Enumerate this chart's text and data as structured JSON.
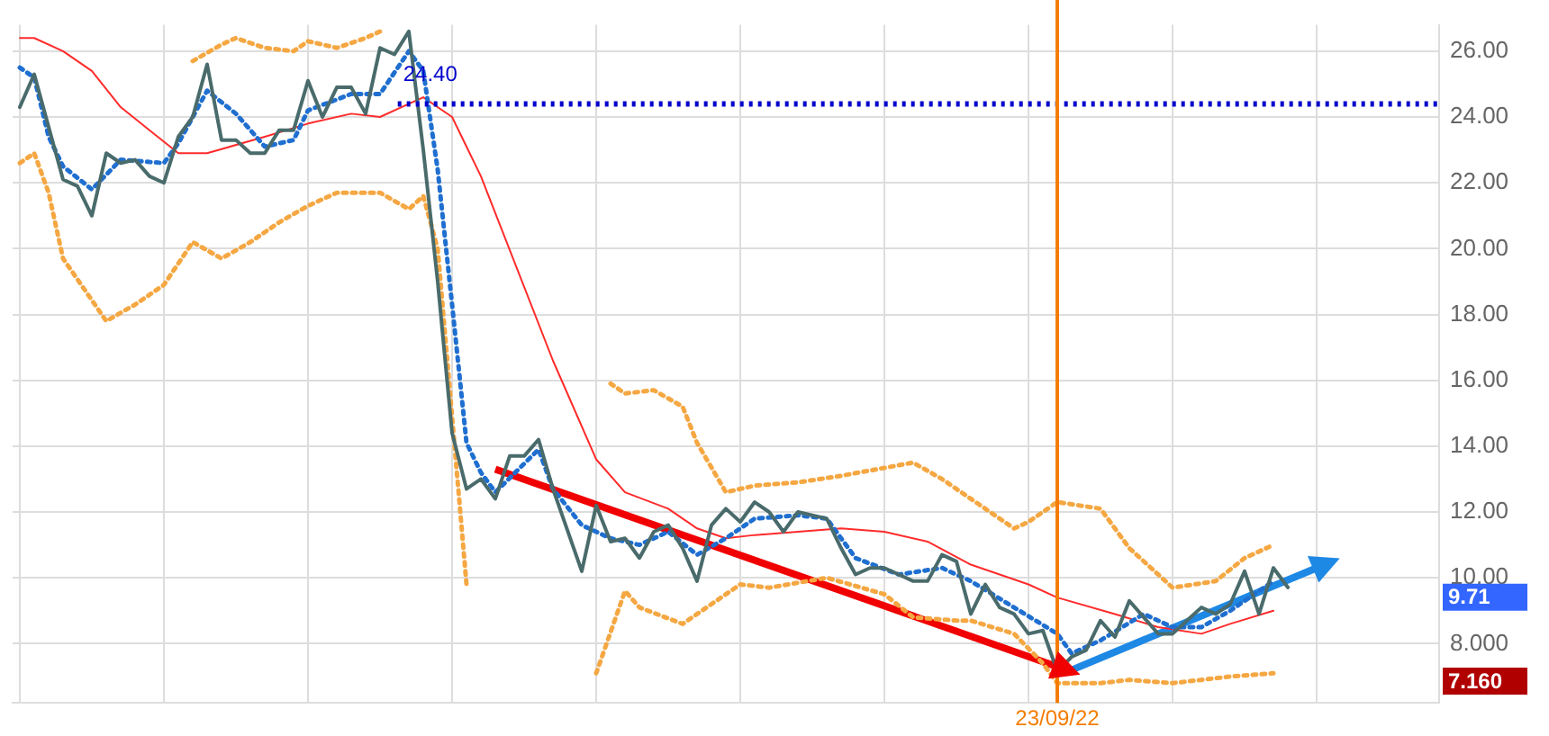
{
  "chart_data": {
    "type": "line",
    "categories": [
      null,
      null,
      null,
      null,
      null,
      null,
      null,
      null,
      null,
      null,
      null,
      null,
      null,
      null,
      null,
      null,
      null,
      null,
      null,
      null,
      null,
      null,
      null,
      null,
      null,
      null,
      null,
      null,
      null,
      null,
      null,
      null,
      null,
      null,
      null,
      null,
      null,
      null,
      null,
      null,
      null,
      null,
      null,
      null,
      null,
      null,
      null,
      null,
      null,
      null,
      null,
      null,
      null,
      null,
      null,
      null,
      null,
      null,
      null,
      null,
      null,
      null,
      null,
      null,
      null,
      null,
      null,
      null,
      null,
      null,
      null,
      null,
      "23/09/22",
      null,
      null,
      null,
      null,
      null,
      null,
      null,
      null,
      null,
      null,
      null,
      null,
      null,
      null,
      null,
      null,
      null,
      null,
      null,
      null,
      null,
      null,
      null,
      null,
      null,
      null
    ],
    "ylim": [
      6.2,
      26.8
    ],
    "yticks": [
      {
        "value": 8,
        "label": "8.000"
      },
      {
        "value": 10,
        "label": "10.00"
      },
      {
        "value": 12,
        "label": "12.00"
      },
      {
        "value": 14,
        "label": "14.00"
      },
      {
        "value": 16,
        "label": "16.00"
      },
      {
        "value": 18,
        "label": "18.00"
      },
      {
        "value": 20,
        "label": "20.00"
      },
      {
        "value": 22,
        "label": "22.00"
      },
      {
        "value": 24,
        "label": "24.00"
      },
      {
        "value": 26,
        "label": "26.00"
      }
    ],
    "grid": true,
    "legend": false,
    "series": [
      {
        "color": "#4a6b6b",
        "line_style": "solid",
        "values": [
          24.3,
          25.3,
          null,
          22.1,
          21.9,
          21.0,
          22.9,
          22.6,
          22.7,
          22.2,
          22.0,
          23.4,
          24.0,
          25.6,
          23.3,
          23.3,
          22.9,
          22.9,
          23.6,
          23.6,
          25.1,
          24.0,
          24.9,
          24.9,
          24.1,
          26.1,
          25.9,
          26.6,
          23.0,
          19.0,
          14.4,
          12.7,
          13.0,
          12.4,
          13.7,
          13.7,
          14.2,
          12.7,
          null,
          10.2,
          12.2,
          11.1,
          11.2,
          10.6,
          11.4,
          11.6,
          10.9,
          9.9,
          11.6,
          12.1,
          11.7,
          12.3,
          12.0,
          11.4,
          12.0,
          null,
          11.8,
          10.9,
          10.1,
          10.3,
          10.3,
          10.1,
          9.9,
          9.9,
          10.7,
          10.5,
          8.9,
          9.8,
          9.1,
          8.9,
          8.3,
          8.4,
          7.16,
          7.6,
          7.8,
          8.7,
          8.2,
          9.3,
          8.8,
          8.3,
          8.3,
          8.7,
          9.1,
          8.9,
          9.2,
          10.2,
          8.9,
          10.3,
          9.71,
          null,
          null,
          null,
          null,
          null,
          null,
          null,
          null,
          null,
          null
        ]
      },
      {
        "color": "#1f6fd0",
        "line_style": "dotted",
        "values": [
          25.5,
          25.2,
          23.4,
          22.5,
          null,
          21.8,
          null,
          22.7,
          null,
          null,
          22.6,
          23.2,
          null,
          24.8,
          null,
          24.1,
          null,
          23.1,
          null,
          23.3,
          24.2,
          null,
          null,
          24.7,
          null,
          24.7,
          null,
          26.0,
          25.4,
          22.4,
          18.3,
          14.1,
          13.2,
          12.6,
          null,
          null,
          13.9,
          12.7,
          null,
          11.6,
          null,
          11.2,
          null,
          11.0,
          null,
          11.4,
          null,
          10.7,
          null,
          11.2,
          null,
          11.8,
          null,
          null,
          11.9,
          null,
          11.8,
          null,
          10.6,
          null,
          null,
          10.1,
          null,
          null,
          10.3,
          null,
          9.9,
          null,
          null,
          9.1,
          null,
          null,
          8.3,
          7.7,
          null,
          8.1,
          null,
          null,
          8.9,
          null,
          8.5,
          null,
          8.5,
          null,
          9.0,
          null,
          null,
          9.9,
          null,
          null,
          null,
          null,
          null,
          null,
          null,
          null,
          null,
          null,
          null
        ]
      },
      {
        "color": "#ff2b2b",
        "line_style": "solid",
        "values": [
          26.4,
          26.4,
          null,
          26.0,
          null,
          25.4,
          null,
          24.3,
          null,
          23.6,
          null,
          22.9,
          null,
          22.9,
          null,
          null,
          null,
          23.4,
          null,
          null,
          23.8,
          null,
          null,
          24.1,
          null,
          24.0,
          null,
          24.4,
          24.6,
          null,
          24.0,
          null,
          22.2,
          null,
          null,
          null,
          null,
          16.6,
          null,
          null,
          13.6,
          null,
          12.6,
          null,
          null,
          12.1,
          null,
          11.5,
          null,
          11.2,
          null,
          11.3,
          null,
          null,
          11.4,
          null,
          null,
          11.5,
          null,
          null,
          11.4,
          null,
          null,
          11.1,
          null,
          null,
          10.4,
          null,
          null,
          null,
          9.8,
          null,
          9.4,
          null,
          null,
          null,
          8.9,
          null,
          null,
          8.5,
          null,
          null,
          8.3,
          null,
          8.6,
          null,
          null,
          9.0,
          null,
          null,
          null,
          null,
          null,
          null,
          null,
          null,
          null,
          null,
          null
        ]
      },
      {
        "color": "#f5a742",
        "line_style": "dotted",
        "values": [
          null,
          null,
          null,
          null,
          null,
          null,
          null,
          null,
          null,
          null,
          null,
          null,
          25.7,
          null,
          26.2,
          26.4,
          null,
          26.1,
          null,
          26.0,
          26.3,
          null,
          26.1,
          null,
          26.4,
          26.6,
          null,
          null,
          null,
          null,
          null,
          null,
          null,
          null,
          null,
          null,
          null,
          null,
          null,
          null,
          null,
          null,
          null,
          null,
          null,
          null,
          null,
          null,
          null,
          null,
          null,
          null,
          null,
          null,
          null,
          null,
          null,
          null,
          null,
          null,
          null,
          null,
          null,
          null,
          null,
          null,
          null,
          null,
          null,
          null,
          null,
          null,
          null,
          null,
          null,
          null,
          null,
          null,
          null,
          null,
          null,
          null,
          null,
          null,
          null,
          null,
          null,
          null,
          null,
          null,
          null,
          null,
          null,
          null,
          null,
          null,
          null,
          null,
          null
        ]
      },
      {
        "color": "#f5a742",
        "line_style": "dotted",
        "values": [
          22.6,
          22.9,
          21.7,
          19.7,
          null,
          null,
          17.8,
          null,
          18.3,
          null,
          18.9,
          null,
          20.2,
          null,
          19.7,
          null,
          20.2,
          null,
          20.8,
          null,
          21.3,
          null,
          21.7,
          null,
          null,
          21.7,
          null,
          21.2,
          21.6,
          20.0,
          14.9,
          9.8,
          null,
          null,
          null,
          null,
          null,
          null,
          null,
          null,
          null,
          null,
          null,
          null,
          null,
          null,
          null,
          null,
          null,
          null,
          null,
          null,
          null,
          null,
          null,
          null,
          null,
          null,
          null,
          null,
          null,
          null,
          null,
          null,
          null,
          null,
          null,
          null,
          null,
          null,
          null,
          null,
          null,
          null,
          null,
          null,
          null,
          null,
          null,
          null,
          null,
          null,
          null,
          null,
          null,
          null,
          null,
          null,
          null,
          null,
          null,
          null,
          null,
          null,
          null,
          null,
          null,
          null,
          null
        ]
      },
      {
        "color": "#f5a742",
        "line_style": "dotted",
        "values": [
          null,
          null,
          null,
          null,
          null,
          null,
          null,
          null,
          null,
          null,
          null,
          null,
          null,
          null,
          null,
          null,
          null,
          null,
          null,
          null,
          null,
          null,
          null,
          null,
          null,
          null,
          null,
          null,
          null,
          null,
          null,
          null,
          null,
          null,
          null,
          null,
          null,
          null,
          null,
          null,
          null,
          15.9,
          15.6,
          null,
          15.7,
          null,
          15.2,
          14.1,
          null,
          12.6,
          null,
          12.8,
          null,
          null,
          12.9,
          null,
          null,
          13.1,
          null,
          null,
          null,
          null,
          13.5,
          null,
          13.0,
          null,
          12.4,
          null,
          null,
          11.5,
          11.7,
          null,
          12.3,
          null,
          null,
          12.1,
          null,
          10.9,
          null,
          null,
          9.7,
          null,
          null,
          9.9,
          null,
          10.6,
          null,
          11.0,
          null,
          null,
          null,
          null,
          null,
          null,
          null,
          null,
          null,
          null,
          null
        ]
      },
      {
        "color": "#f5a742",
        "line_style": "dotted",
        "values": [
          null,
          null,
          null,
          null,
          null,
          null,
          null,
          null,
          null,
          null,
          null,
          null,
          null,
          null,
          null,
          null,
          null,
          null,
          null,
          null,
          null,
          null,
          null,
          null,
          null,
          null,
          null,
          null,
          null,
          null,
          null,
          null,
          null,
          null,
          null,
          null,
          null,
          null,
          null,
          null,
          7.1,
          null,
          9.6,
          9.1,
          null,
          null,
          8.6,
          8.9,
          null,
          null,
          9.8,
          null,
          9.7,
          null,
          null,
          null,
          10.0,
          null,
          null,
          null,
          9.5,
          null,
          8.8,
          null,
          null,
          8.7,
          8.7,
          null,
          null,
          8.3,
          null,
          7.4,
          6.8,
          null,
          null,
          6.8,
          null,
          6.9,
          null,
          null,
          6.8,
          null,
          null,
          null,
          7.0,
          null,
          null,
          7.1,
          null,
          null,
          null,
          null,
          null,
          null,
          null,
          null,
          null,
          null,
          null
        ]
      },
      {
        "color": "#f00000",
        "line_style": "solid",
        "values": [
          null,
          null,
          null,
          null,
          null,
          null,
          null,
          null,
          null,
          null,
          null,
          null,
          null,
          null,
          null,
          null,
          null,
          null,
          null,
          null,
          null,
          null,
          null,
          null,
          null,
          null,
          null,
          null,
          null,
          null,
          null,
          null,
          null,
          13.3,
          null,
          null,
          null,
          null,
          null,
          null,
          null,
          null,
          null,
          null,
          null,
          null,
          null,
          null,
          null,
          null,
          null,
          null,
          null,
          null,
          null,
          null,
          null,
          null,
          null,
          null,
          null,
          null,
          null,
          null,
          null,
          null,
          null,
          null,
          null,
          null,
          null,
          null,
          7.3,
          null,
          null,
          null,
          null,
          null,
          null,
          null,
          null,
          null,
          null,
          null,
          null,
          null,
          null,
          null,
          null,
          null,
          null,
          null,
          null,
          null,
          null,
          null,
          null,
          null,
          null
        ]
      },
      {
        "color": "#1e88e5",
        "line_style": "solid",
        "values": [
          null,
          null,
          null,
          null,
          null,
          null,
          null,
          null,
          null,
          null,
          null,
          null,
          null,
          null,
          null,
          null,
          null,
          null,
          null,
          null,
          null,
          null,
          null,
          null,
          null,
          null,
          null,
          null,
          null,
          null,
          null,
          null,
          null,
          null,
          null,
          null,
          null,
          null,
          null,
          null,
          null,
          null,
          null,
          null,
          null,
          null,
          null,
          null,
          null,
          null,
          null,
          null,
          null,
          null,
          null,
          null,
          null,
          null,
          null,
          null,
          null,
          null,
          null,
          null,
          null,
          null,
          null,
          null,
          null,
          null,
          null,
          null,
          null,
          7.2,
          null,
          null,
          null,
          null,
          null,
          null,
          null,
          null,
          null,
          null,
          null,
          null,
          null,
          null,
          null,
          null,
          10.3,
          null,
          null,
          null,
          null,
          null,
          null,
          null,
          null
        ]
      }
    ],
    "ref_lines": [
      {
        "axis": "y",
        "value": 24.4,
        "label": "24.40",
        "color": "#0000cc",
        "line_style": "dotted"
      },
      {
        "axis": "x",
        "value": "23/09/22",
        "color": "#f57c00",
        "line_style": "solid"
      }
    ],
    "annotations": [
      "9.71",
      "7.160"
    ]
  }
}
